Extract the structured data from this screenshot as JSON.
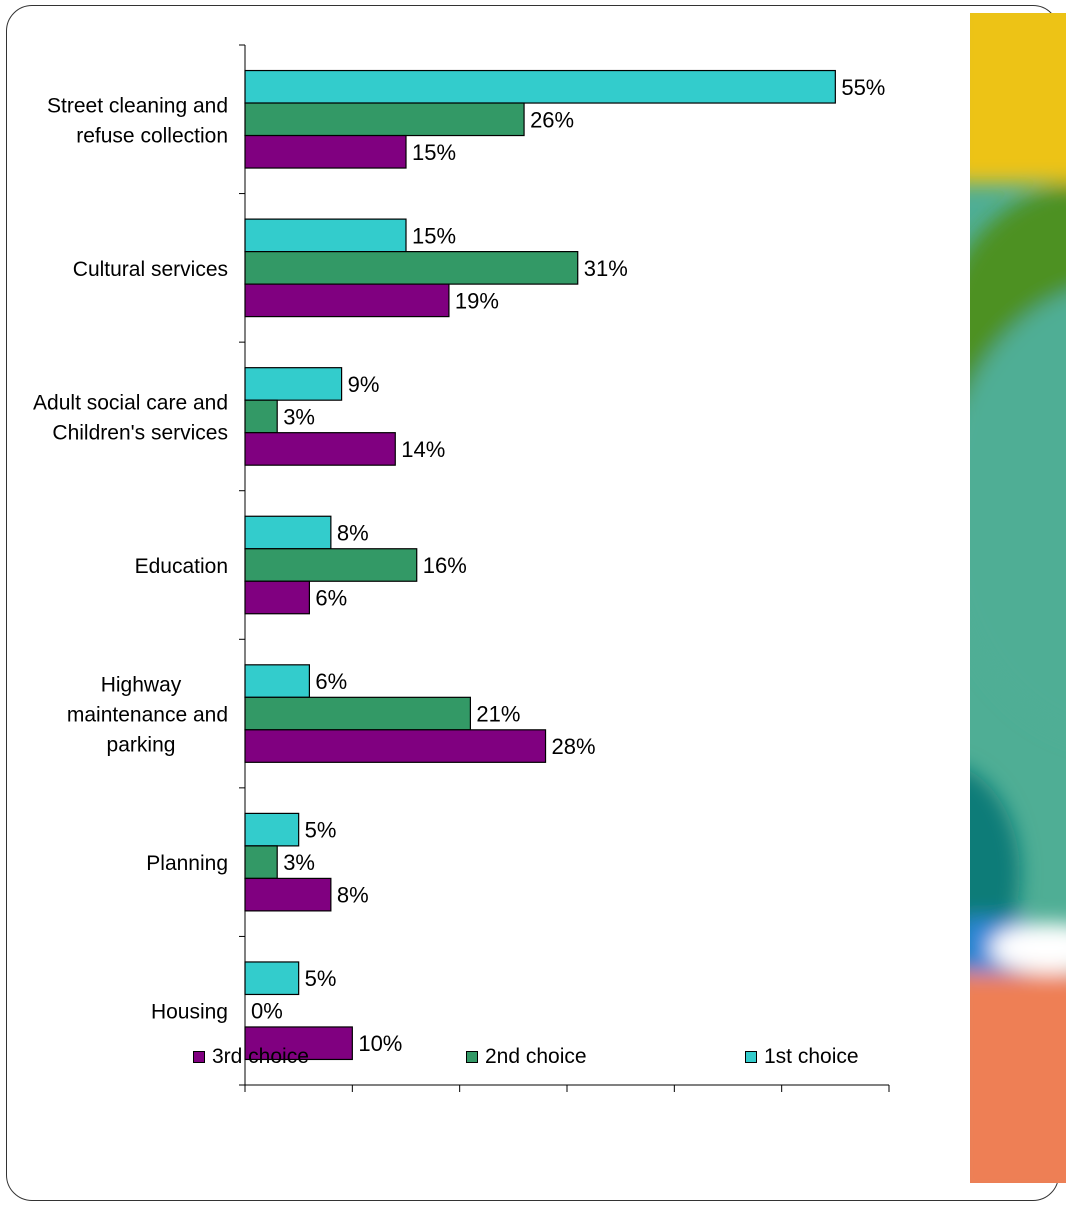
{
  "chart_data": {
    "type": "bar",
    "orientation": "horizontal",
    "categories": [
      [
        "Street cleaning and",
        "refuse collection"
      ],
      [
        "Cultural services"
      ],
      [
        "Adult social care and",
        "Children's services"
      ],
      [
        "Education"
      ],
      [
        "Highway",
        "maintenance and",
        "parking"
      ],
      [
        "Planning"
      ],
      [
        "Housing"
      ]
    ],
    "series": [
      {
        "name": "1st choice",
        "color": "#33CCCC",
        "values": [
          55,
          15,
          9,
          8,
          6,
          5,
          5
        ]
      },
      {
        "name": "2nd choice",
        "color": "#339966",
        "values": [
          26,
          31,
          3,
          16,
          21,
          3,
          0
        ]
      },
      {
        "name": "3rd choice",
        "color": "#800080",
        "values": [
          15,
          19,
          14,
          6,
          28,
          8,
          10
        ]
      }
    ],
    "value_suffix": "%",
    "xlim": [
      0,
      60
    ],
    "x_ticks": [
      0,
      10,
      20,
      30,
      40,
      50,
      60
    ],
    "show_x_tick_labels": false,
    "grid": false,
    "legend": {
      "position": "bottom",
      "order": [
        "3rd choice",
        "2nd choice",
        "1st choice"
      ]
    },
    "title": "",
    "xlabel": "",
    "ylabel": ""
  },
  "decoration": {
    "colors": [
      "#EDC315",
      "#4E9124",
      "#4FAE95",
      "#0A7C78",
      "#2A86D8",
      "#EE7F55"
    ]
  }
}
